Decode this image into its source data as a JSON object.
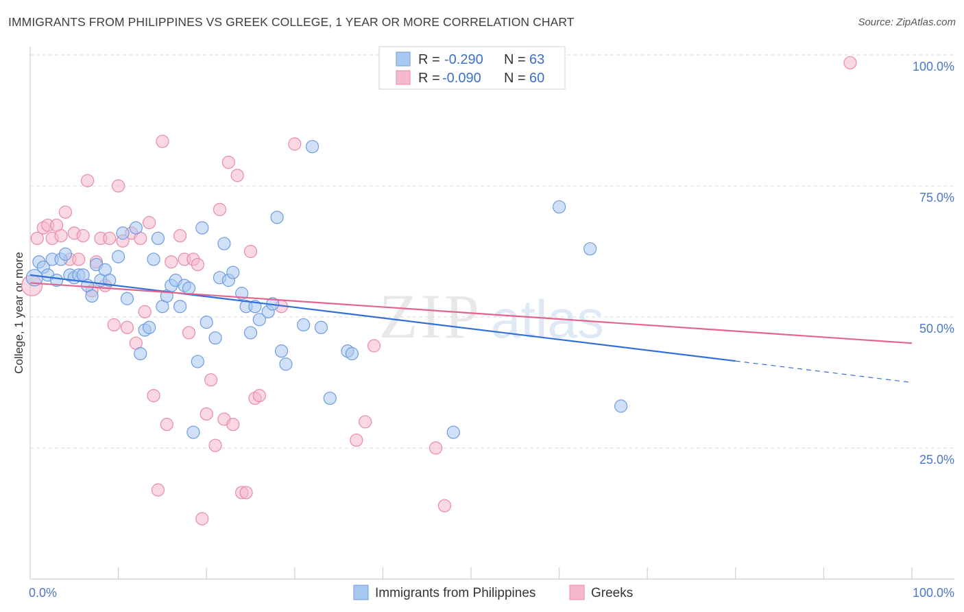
{
  "title": "IMMIGRANTS FROM PHILIPPINES VS GREEK COLLEGE, 1 YEAR OR MORE CORRELATION CHART",
  "source": "Source: ZipAtlas.com",
  "watermark": {
    "zip": "ZIP",
    "atlas": "atlas"
  },
  "colors": {
    "blue_fill": "#a9c8f0",
    "blue_stroke": "#6d9be0",
    "blue_line": "#2f6fd6",
    "pink_fill": "#f6b8cc",
    "pink_stroke": "#e88aa8",
    "pink_line": "#e0648e",
    "grid": "#d9d9d9",
    "tick_text": "#4a78c8"
  },
  "legend": {
    "rows": [
      {
        "r_label": "R =",
        "r_value": "-0.290",
        "n_label": "N =",
        "n_value": "63"
      },
      {
        "r_label": "R =",
        "r_value": "-0.090",
        "n_label": "N =",
        "n_value": "60"
      }
    ]
  },
  "chart_data": {
    "type": "scatter",
    "xlabel": "",
    "ylabel": "College, 1 year or more",
    "xlim": [
      0,
      100
    ],
    "ylim": [
      0,
      100
    ],
    "x_tick_labels": [
      "0.0%",
      "100.0%"
    ],
    "y_tick_labels": [
      "25.0%",
      "50.0%",
      "75.0%",
      "100.0%"
    ],
    "y_ticks": [
      25,
      50,
      75,
      100
    ],
    "legend_placement": "top-center",
    "series": [
      {
        "name": "Immigrants from Philippines",
        "color": "#a9c8f0",
        "trend": {
          "x": [
            0,
            80
          ],
          "y": [
            58.0,
            41.6
          ],
          "dashed_to": [
            100,
            37.5
          ]
        },
        "points": [
          [
            0.5,
            57.5
          ],
          [
            1.0,
            60.5
          ],
          [
            1.5,
            59.5
          ],
          [
            2.0,
            58.0
          ],
          [
            2.5,
            61.0
          ],
          [
            3.0,
            57.0
          ],
          [
            3.5,
            61.0
          ],
          [
            4.0,
            62.0
          ],
          [
            4.5,
            58.0
          ],
          [
            5.0,
            57.5
          ],
          [
            5.5,
            58.0
          ],
          [
            6.0,
            58.0
          ],
          [
            6.5,
            56.0
          ],
          [
            7.0,
            54.0
          ],
          [
            7.5,
            60.0
          ],
          [
            8.0,
            57.0
          ],
          [
            8.5,
            59.0
          ],
          [
            9.0,
            57.0
          ],
          [
            10.0,
            61.5
          ],
          [
            10.5,
            66.0
          ],
          [
            11.0,
            53.5
          ],
          [
            12.0,
            67.0
          ],
          [
            12.5,
            43.0
          ],
          [
            13.0,
            47.5
          ],
          [
            13.5,
            48.0
          ],
          [
            14.0,
            61.0
          ],
          [
            14.5,
            65.0
          ],
          [
            15.0,
            52.0
          ],
          [
            15.5,
            54.0
          ],
          [
            16.0,
            56.0
          ],
          [
            16.5,
            57.0
          ],
          [
            17.0,
            52.0
          ],
          [
            17.5,
            56.0
          ],
          [
            18.0,
            55.5
          ],
          [
            18.5,
            28.0
          ],
          [
            19.0,
            41.5
          ],
          [
            19.5,
            67.0
          ],
          [
            20.0,
            49.0
          ],
          [
            21.0,
            46.0
          ],
          [
            21.5,
            57.5
          ],
          [
            22.0,
            64.0
          ],
          [
            22.5,
            57.0
          ],
          [
            23.0,
            58.5
          ],
          [
            24.0,
            54.5
          ],
          [
            24.5,
            52.0
          ],
          [
            25.0,
            47.0
          ],
          [
            25.5,
            52.0
          ],
          [
            26.0,
            49.5
          ],
          [
            27.0,
            51.0
          ],
          [
            27.5,
            52.5
          ],
          [
            28.0,
            69.0
          ],
          [
            28.5,
            43.5
          ],
          [
            29.0,
            41.0
          ],
          [
            31.0,
            48.5
          ],
          [
            32.0,
            82.5
          ],
          [
            33.0,
            48.0
          ],
          [
            34.0,
            34.5
          ],
          [
            36.0,
            43.5
          ],
          [
            36.5,
            43.0
          ],
          [
            48.0,
            28.0
          ],
          [
            60.0,
            71.0
          ],
          [
            63.5,
            63.0
          ],
          [
            67.0,
            33.0
          ]
        ]
      },
      {
        "name": "Greeks",
        "color": "#f6b8cc",
        "trend": {
          "x": [
            0,
            100
          ],
          "y": [
            56.5,
            45.0
          ]
        },
        "points": [
          [
            0.2,
            56.0
          ],
          [
            0.8,
            65.0
          ],
          [
            1.5,
            67.0
          ],
          [
            2.0,
            67.5
          ],
          [
            2.5,
            65.0
          ],
          [
            3.0,
            67.5
          ],
          [
            3.5,
            65.5
          ],
          [
            4.0,
            70.0
          ],
          [
            4.5,
            61.0
          ],
          [
            5.0,
            66.0
          ],
          [
            5.5,
            61.0
          ],
          [
            6.0,
            65.5
          ],
          [
            6.5,
            76.0
          ],
          [
            7.0,
            55.0
          ],
          [
            7.5,
            60.5
          ],
          [
            8.0,
            65.0
          ],
          [
            8.5,
            56.0
          ],
          [
            9.0,
            65.0
          ],
          [
            9.5,
            48.5
          ],
          [
            10.0,
            75.0
          ],
          [
            10.5,
            64.5
          ],
          [
            11.0,
            48.0
          ],
          [
            11.5,
            66.0
          ],
          [
            12.0,
            45.0
          ],
          [
            12.5,
            65.0
          ],
          [
            13.0,
            51.0
          ],
          [
            13.5,
            68.0
          ],
          [
            14.0,
            35.0
          ],
          [
            14.5,
            17.0
          ],
          [
            15.0,
            83.5
          ],
          [
            15.5,
            29.5
          ],
          [
            16.0,
            60.5
          ],
          [
            17.0,
            65.5
          ],
          [
            17.5,
            61.0
          ],
          [
            18.0,
            47.0
          ],
          [
            18.5,
            61.0
          ],
          [
            19.0,
            60.0
          ],
          [
            19.5,
            11.5
          ],
          [
            20.0,
            31.5
          ],
          [
            20.5,
            38.0
          ],
          [
            21.0,
            25.5
          ],
          [
            21.5,
            70.5
          ],
          [
            22.0,
            30.5
          ],
          [
            22.5,
            79.5
          ],
          [
            23.0,
            29.5
          ],
          [
            23.5,
            77.0
          ],
          [
            24.0,
            16.5
          ],
          [
            24.5,
            16.5
          ],
          [
            25.0,
            62.5
          ],
          [
            25.5,
            34.5
          ],
          [
            26.0,
            35.0
          ],
          [
            28.5,
            52.0
          ],
          [
            30.0,
            83.0
          ],
          [
            37.0,
            26.5
          ],
          [
            38.0,
            30.0
          ],
          [
            39.0,
            44.5
          ],
          [
            46.0,
            25.0
          ],
          [
            47.0,
            14.0
          ],
          [
            57.0,
            99.5
          ],
          [
            93.0,
            98.5
          ]
        ]
      }
    ]
  }
}
